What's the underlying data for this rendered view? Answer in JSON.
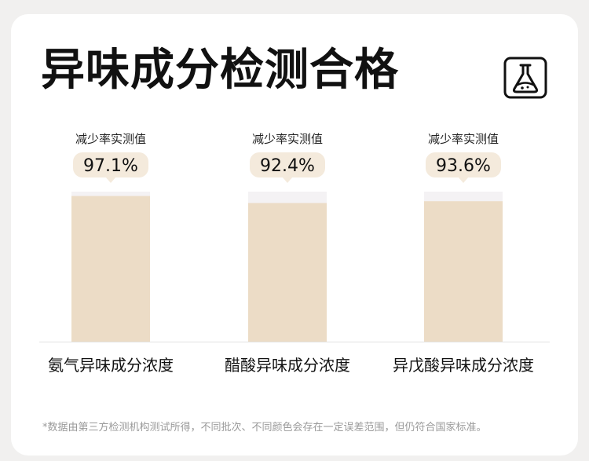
{
  "page": {
    "title": "异味成分检测合格",
    "icon": "lab-flask-icon",
    "footnote": "*数据由第三方检测机构测试所得，不同批次、不同颜色会存在一定误差范围，但仍符合国家标准。"
  },
  "colors": {
    "bar": "#ecdcc6",
    "track": "#f4f2f4",
    "bubble": "#f4eadc",
    "text": "#111111",
    "axis": "#e2e2e2"
  },
  "chart_data": {
    "type": "bar",
    "categories": [
      "氨气异味成分浓度",
      "醋酸异味成分浓度",
      "异戊酸异味成分浓度"
    ],
    "values": [
      97.1,
      92.4,
      93.6
    ],
    "value_labels": [
      "97.1%",
      "92.4%",
      "93.6%"
    ],
    "caption": "减少率实测值",
    "ylim": [
      0,
      100
    ],
    "title": "异味成分检测合格",
    "xlabel": "",
    "ylabel": "",
    "grid": false,
    "legend": "none"
  }
}
